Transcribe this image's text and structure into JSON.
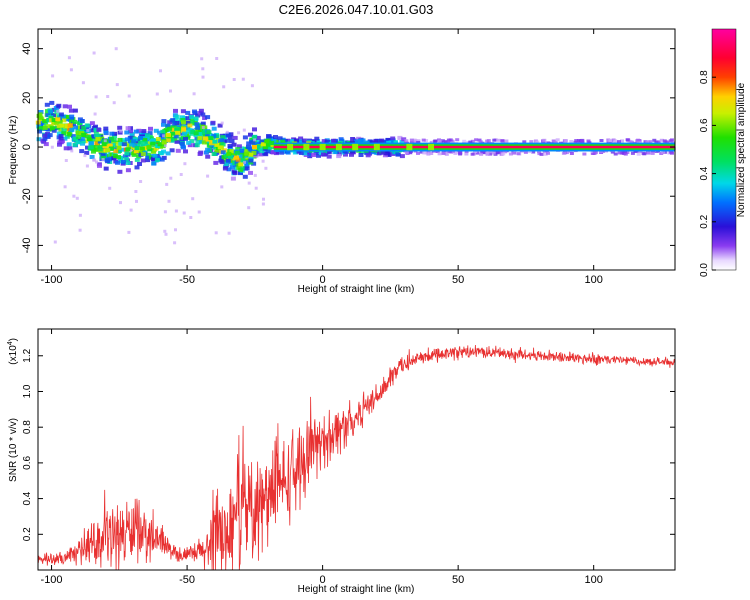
{
  "title": "C2E6.2026.047.10.01.G03",
  "chart_data": [
    {
      "type": "heatmap",
      "name": "spectrogram",
      "xlabel": "Height of straight line (km)",
      "ylabel": "Frequency (Hz)",
      "xlim": [
        -105,
        130
      ],
      "ylim": [
        -50,
        48
      ],
      "xticks": [
        -100,
        -50,
        0,
        50,
        100
      ],
      "yticks": [
        -40,
        -20,
        0,
        20,
        40
      ],
      "colorbar": {
        "label": "Normalized spectral amplitude",
        "range": [
          0.0,
          1.0
        ],
        "ticks": [
          "0.0",
          "0.2",
          "0.4",
          "0.6",
          "0.8"
        ],
        "tick_values": [
          0.0,
          0.2,
          0.4,
          0.6,
          0.8
        ]
      },
      "ridge": {
        "x": [
          -105,
          -100,
          -95,
          -90,
          -85,
          -80,
          -75,
          -70,
          -65,
          -60,
          -55,
          -50,
          -45,
          -40,
          -35,
          -30,
          -25,
          -20,
          -15,
          -10,
          0,
          10,
          20,
          40,
          60,
          80,
          100,
          130
        ],
        "y": [
          10,
          11,
          9,
          6,
          2,
          0,
          -1,
          -1,
          0,
          1,
          6,
          8,
          6,
          2,
          -3,
          -6,
          0,
          1,
          1,
          0,
          0,
          0,
          0,
          0,
          0,
          0,
          0,
          0
        ]
      }
    },
    {
      "type": "line",
      "name": "snr",
      "xlabel": "Height of straight line (km)",
      "ylabel": "SNR (10 * v/v)",
      "multiplier_label": "(x10",
      "multiplier_exp": "4",
      "multiplier_close": ")",
      "xlim": [
        -105,
        130
      ],
      "ylim": [
        0,
        1.35
      ],
      "xticks": [
        -100,
        -50,
        0,
        50,
        100
      ],
      "yticks": [
        "0.2",
        "0.4",
        "0.6",
        "0.8",
        "1.0",
        "1.2"
      ],
      "ytick_values": [
        0.2,
        0.4,
        0.6,
        0.8,
        1.0,
        1.2
      ],
      "color": "#e83030",
      "envelope": {
        "x": [
          -105,
          -95,
          -90,
          -85,
          -80,
          -75,
          -70,
          -65,
          -60,
          -55,
          -50,
          -45,
          -40,
          -35,
          -30,
          -25,
          -20,
          -15,
          -10,
          -5,
          0,
          5,
          10,
          15,
          20,
          25,
          30,
          40,
          50,
          60,
          80,
          100,
          120,
          130
        ],
        "base": [
          0.06,
          0.06,
          0.1,
          0.15,
          0.18,
          0.2,
          0.22,
          0.2,
          0.16,
          0.1,
          0.08,
          0.1,
          0.15,
          0.22,
          0.3,
          0.35,
          0.4,
          0.48,
          0.55,
          0.65,
          0.72,
          0.78,
          0.82,
          0.9,
          0.98,
          1.08,
          1.15,
          1.2,
          1.22,
          1.22,
          1.2,
          1.18,
          1.17,
          1.16
        ],
        "noise": [
          0.04,
          0.05,
          0.08,
          0.14,
          0.2,
          0.25,
          0.22,
          0.18,
          0.12,
          0.06,
          0.06,
          0.1,
          0.3,
          0.35,
          0.4,
          0.35,
          0.35,
          0.3,
          0.3,
          0.22,
          0.2,
          0.18,
          0.15,
          0.12,
          0.1,
          0.08,
          0.06,
          0.05,
          0.05,
          0.04,
          0.04,
          0.04,
          0.03,
          0.03
        ]
      }
    }
  ]
}
